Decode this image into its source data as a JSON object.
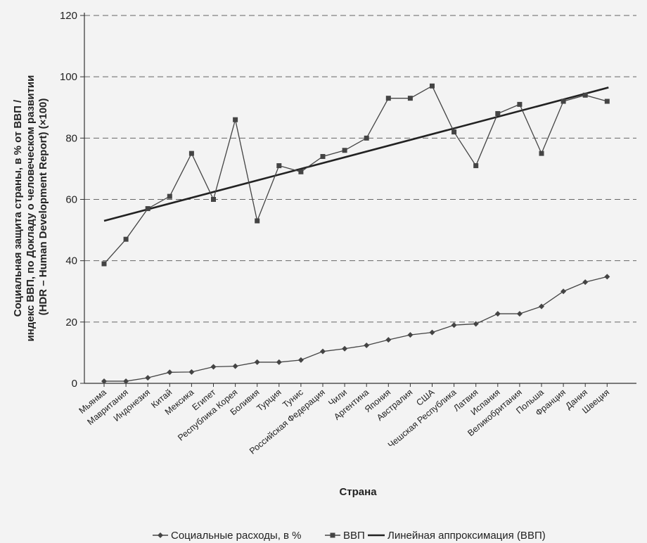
{
  "chart_data": {
    "type": "line",
    "title": "",
    "xlabel": "Страна",
    "ylabel_lines": [
      "Социальная защита страны, в % от ВВП /",
      "индекс ВВП, по Докладу о человеческом развитии",
      "(HDR – Human Development Report) (×100)"
    ],
    "ylim": [
      0,
      120
    ],
    "yticks": [
      0,
      20,
      40,
      60,
      80,
      100,
      120
    ],
    "grid": "horizontal dashed",
    "legend_position": "bottom",
    "categories": [
      "Мьянма",
      "Мавритания",
      "Индонезия",
      "Китай",
      "Мексика",
      "Египет",
      "Республика Корея",
      "Боливия",
      "Турция",
      "Тунис",
      "Российская Федерация",
      "Чили",
      "Аргентина",
      "Япония",
      "Австралия",
      "США",
      "Чешская Республика",
      "Латвия",
      "Испания",
      "Великобритания",
      "Польша",
      "Франция",
      "Дания",
      "Швеция"
    ],
    "series": [
      {
        "name": "Социальные расходы, в %",
        "marker": "diamond",
        "values": [
          0.7,
          0.7,
          1.8,
          3.6,
          3.7,
          5.4,
          5.6,
          6.9,
          6.9,
          7.6,
          10.4,
          11.3,
          12.4,
          14.2,
          15.8,
          16.6,
          19.0,
          19.4,
          22.7,
          22.7,
          25.1,
          30.0,
          33.0,
          34.8
        ]
      },
      {
        "name": "ВВП",
        "marker": "square",
        "values": [
          39,
          47,
          57,
          61,
          75,
          60,
          86,
          53,
          71,
          69,
          74,
          76,
          80,
          93,
          93,
          97,
          82,
          71,
          88,
          91,
          75,
          92,
          94,
          92
        ]
      },
      {
        "name": "Линейная аппроксимация (ВВП)",
        "marker": "none",
        "trend": [
          53,
          96.5
        ]
      }
    ],
    "colors": {
      "line": "#444444",
      "trend": "#222222",
      "grid": "#666666",
      "text": "#222222"
    }
  }
}
